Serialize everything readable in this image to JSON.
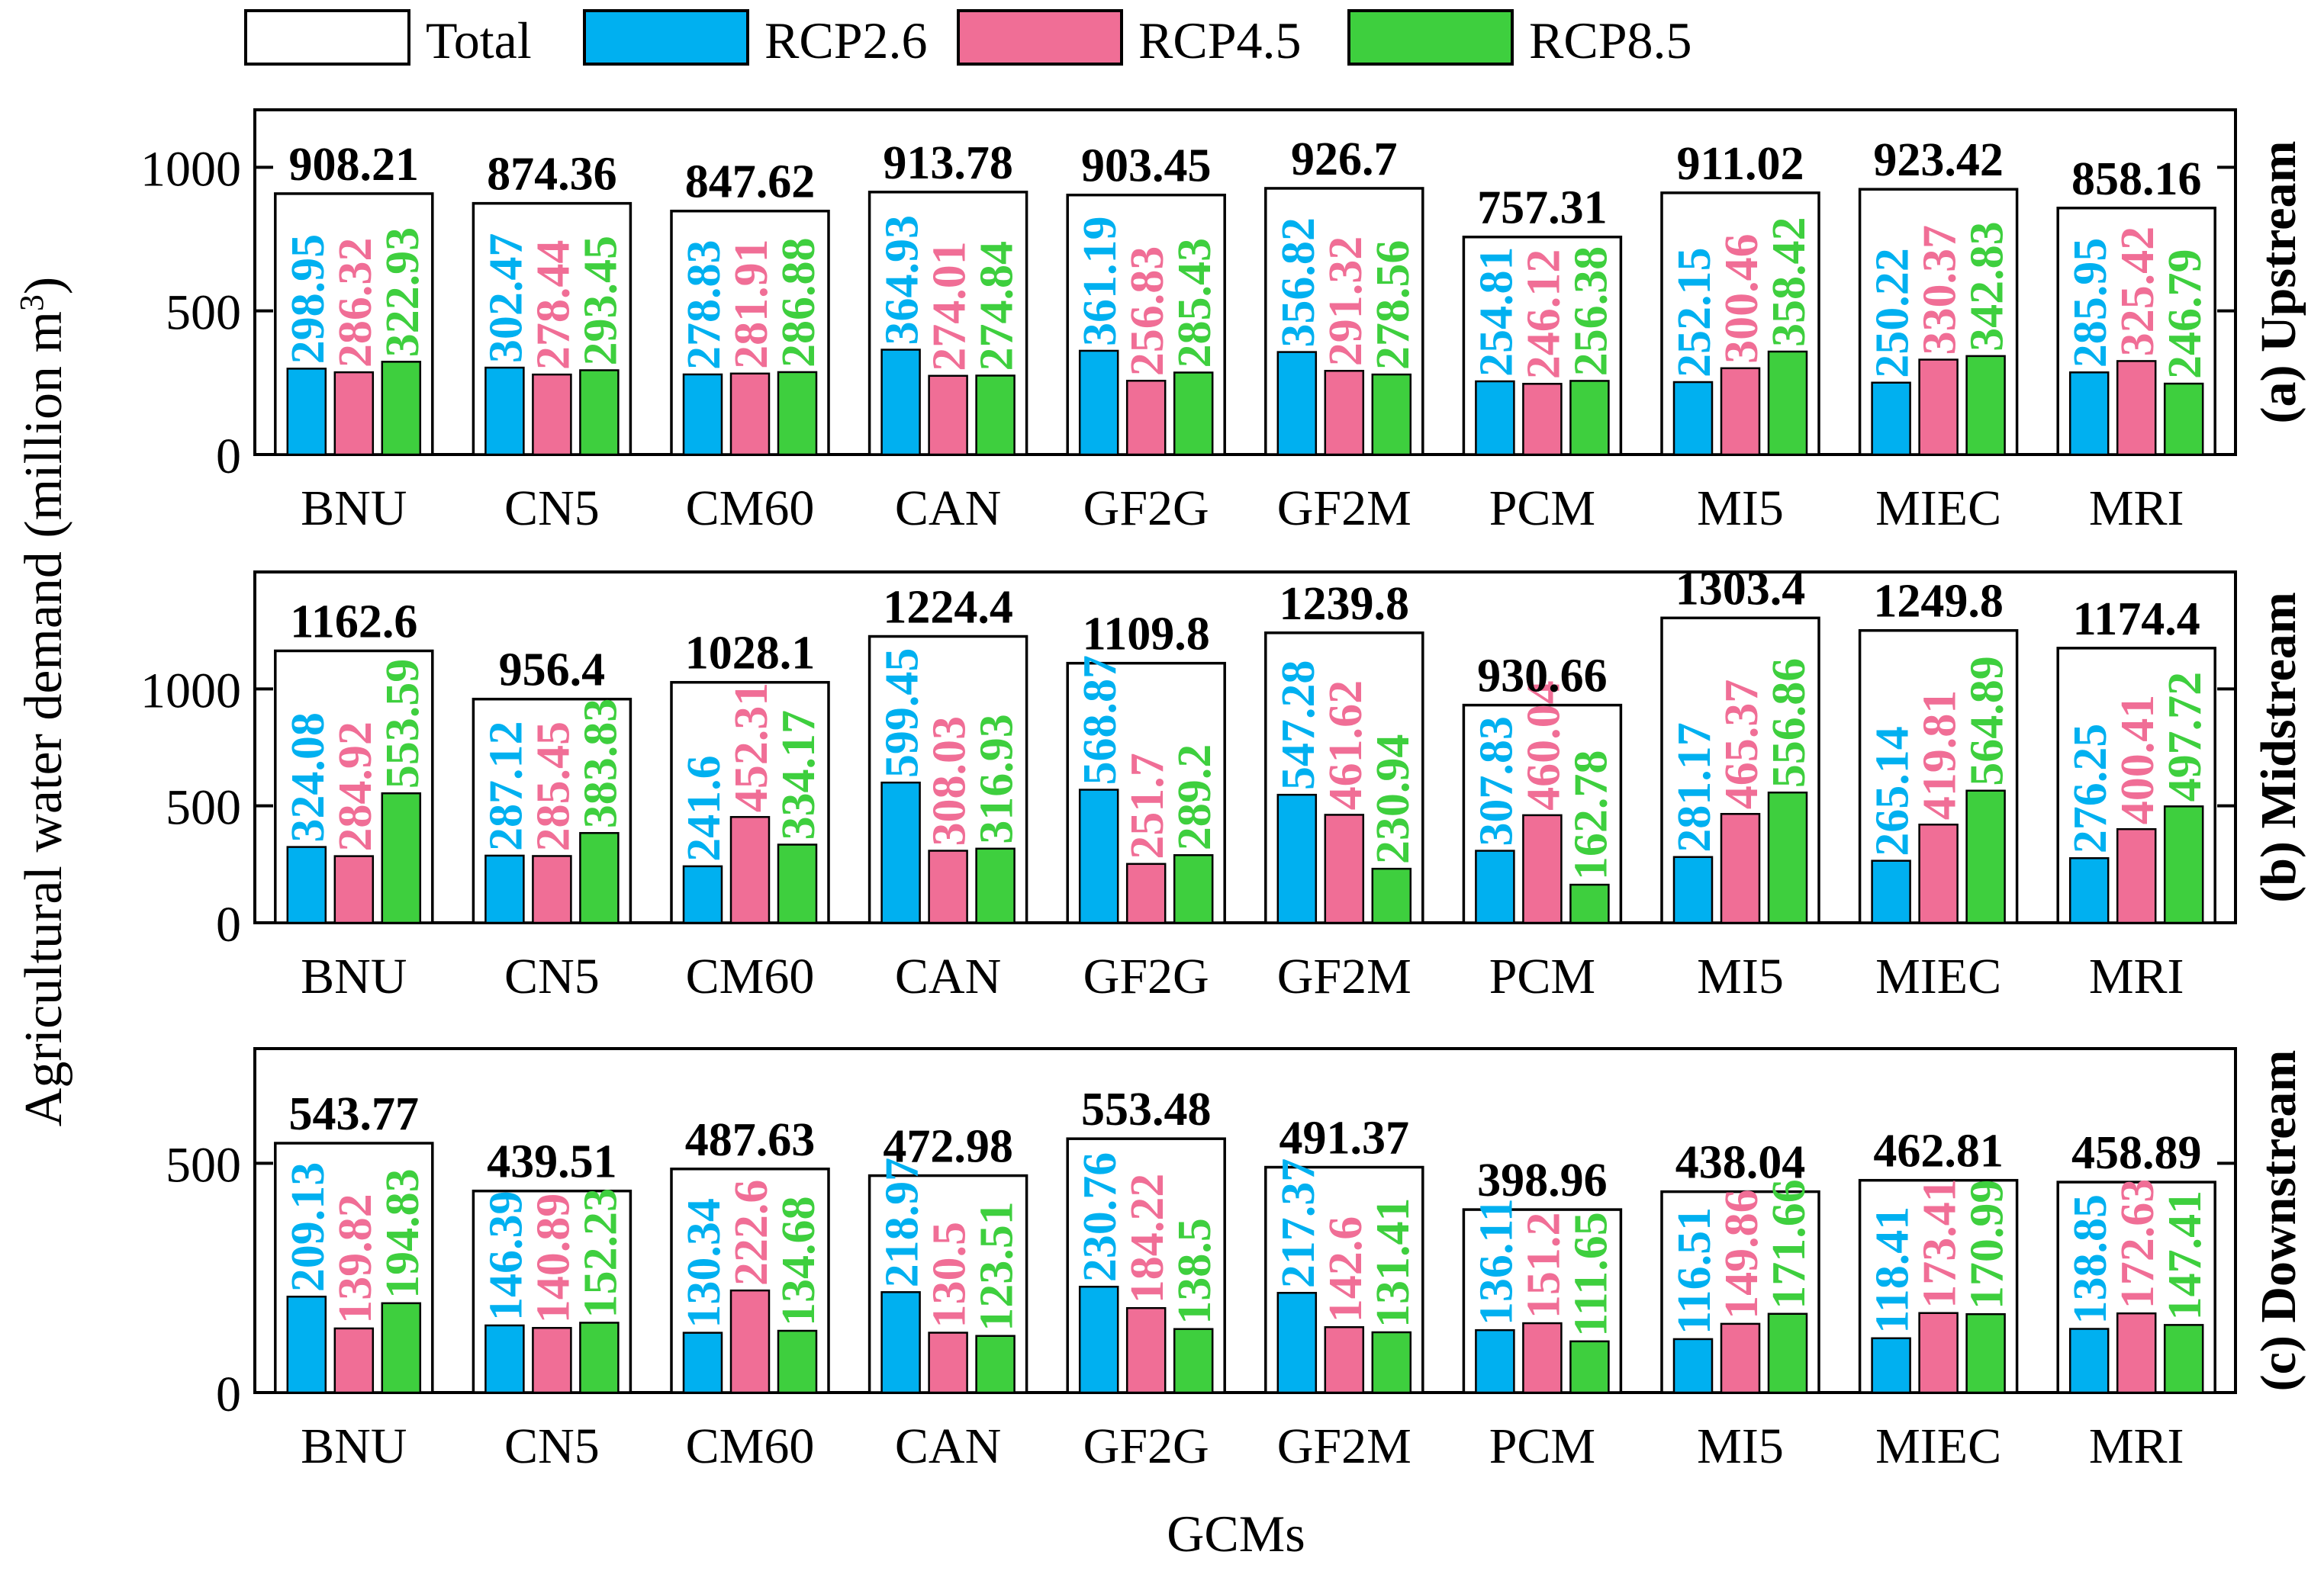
{
  "colors": {
    "total_fill": "#ffffff",
    "rcp26": "#00b0f0",
    "rcp45": "#f06e96",
    "rcp85": "#3ecf3e",
    "axis": "#000000"
  },
  "chart_data": [
    {
      "type": "bar",
      "panel_label": "(a) Upstream",
      "xlabel": "GCMs",
      "ylabel": "Agricultural water demand (million m",
      "ylabel_sup": "3",
      "ylabel_close": ")",
      "legend": {
        "entries": [
          "Total",
          "RCP2.6",
          "RCP4.5",
          "RCP8.5"
        ],
        "placement": "top-center"
      },
      "categories": [
        "BNU",
        "CN5",
        "CM60",
        "CAN",
        "GF2G",
        "GF2M",
        "PCM",
        "MI5",
        "MIEC",
        "MRI"
      ],
      "ylim": [
        0,
        1200
      ],
      "yticks": [
        0,
        500,
        1000
      ],
      "total": {
        "values": [
          908.21,
          874.36,
          847.62,
          913.78,
          903.45,
          926.7,
          757.31,
          911.02,
          923.42,
          858.16
        ],
        "labels": [
          "908.21",
          "874.36",
          "847.62",
          "913.78",
          "903.45",
          "926.7",
          "757.31",
          "911.02",
          "923.42",
          "858.16"
        ]
      },
      "series": [
        {
          "name": "RCP2.6",
          "values": [
            298.95,
            302.47,
            278.83,
            364.93,
            361.19,
            356.82,
            254.81,
            252.15,
            250.22,
            285.95
          ],
          "labels": [
            "298.95",
            "302.47",
            "278.83",
            "364.93",
            "361.19",
            "356.82",
            "254.81",
            "252.15",
            "250.22",
            "285.95"
          ]
        },
        {
          "name": "RCP4.5",
          "values": [
            286.32,
            278.44,
            281.91,
            274.01,
            256.83,
            291.32,
            246.12,
            300.46,
            330.37,
            325.42
          ],
          "labels": [
            "286.32",
            "278.44",
            "281.91",
            "274.01",
            "256.83",
            "291.32",
            "246.12",
            "300.46",
            "330.37",
            "325.42"
          ]
        },
        {
          "name": "RCP8.5",
          "values": [
            322.93,
            293.45,
            286.88,
            274.84,
            285.43,
            278.56,
            256.38,
            358.42,
            342.83,
            246.79
          ],
          "labels": [
            "322.93",
            "293.45",
            "286.88",
            "274.84",
            "285.43",
            "278.56",
            "256.38",
            "358.42",
            "342.83",
            "246.79"
          ]
        }
      ]
    },
    {
      "type": "bar",
      "panel_label": "(b) Midstream",
      "categories": [
        "BNU",
        "CN5",
        "CM60",
        "CAN",
        "GF2G",
        "GF2M",
        "PCM",
        "MI5",
        "MIEC",
        "MRI"
      ],
      "ylim": [
        0,
        1500
      ],
      "yticks": [
        0,
        500,
        1000
      ],
      "total": {
        "values": [
          1162.6,
          956.4,
          1028.1,
          1224.4,
          1109.8,
          1239.8,
          930.66,
          1303.4,
          1249.8,
          1174.4
        ],
        "labels": [
          "1162.6",
          "956.4",
          "1028.1",
          "1224.4",
          "1109.8",
          "1239.8",
          "930.66",
          "1303.4",
          "1249.8",
          "1174.4"
        ]
      },
      "series": [
        {
          "name": "RCP2.6",
          "values": [
            324.08,
            287.12,
            241.6,
            599.45,
            568.87,
            547.28,
            307.83,
            281.17,
            265.14,
            276.25
          ],
          "labels": [
            "324.08",
            "287.12",
            "241.6",
            "599.45",
            "568.87",
            "547.28",
            "307.83",
            "281.17",
            "265.14",
            "276.25"
          ]
        },
        {
          "name": "RCP4.5",
          "values": [
            284.92,
            285.45,
            452.31,
            308.03,
            251.7,
            461.62,
            460.04,
            465.37,
            419.81,
            400.41
          ],
          "labels": [
            "284.92",
            "285.45",
            "452.31",
            "308.03",
            "251.7",
            "461.62",
            "460.04",
            "465.37",
            "419.81",
            "400.41"
          ]
        },
        {
          "name": "RCP8.5",
          "values": [
            553.59,
            383.83,
            334.17,
            316.93,
            289.2,
            230.94,
            162.78,
            556.86,
            564.89,
            497.72
          ],
          "labels": [
            "553.59",
            "383.83",
            "334.17",
            "316.93",
            "289.2",
            "230.94",
            "162.78",
            "556.86",
            "564.89",
            "497.72"
          ]
        }
      ]
    },
    {
      "type": "bar",
      "panel_label": "(c) Downstream",
      "categories": [
        "BNU",
        "CN5",
        "CM60",
        "CAN",
        "GF2G",
        "GF2M",
        "PCM",
        "MI5",
        "MIEC",
        "MRI"
      ],
      "ylim": [
        0,
        750
      ],
      "yticks": [
        0,
        500
      ],
      "total": {
        "values": [
          543.77,
          439.51,
          487.63,
          472.98,
          553.48,
          491.37,
          398.96,
          438.04,
          462.81,
          458.89
        ],
        "labels": [
          "543.77",
          "439.51",
          "487.63",
          "472.98",
          "553.48",
          "491.37",
          "398.96",
          "438.04",
          "462.81",
          "458.89"
        ]
      },
      "series": [
        {
          "name": "RCP2.6",
          "values": [
            209.13,
            146.39,
            130.34,
            218.97,
            230.76,
            217.37,
            136.11,
            116.51,
            118.41,
            138.85
          ],
          "labels": [
            "209.13",
            "146.39",
            "130.34",
            "218.97",
            "230.76",
            "217.37",
            "136.11",
            "116.51",
            "118.41",
            "138.85"
          ]
        },
        {
          "name": "RCP4.5",
          "values": [
            139.82,
            140.89,
            222.6,
            130.5,
            184.22,
            142.6,
            151.2,
            149.86,
            173.41,
            172.63
          ],
          "labels": [
            "139.82",
            "140.89",
            "222.6",
            "130.5",
            "184.22",
            "142.6",
            "151.2",
            "149.86",
            "173.41",
            "172.63"
          ]
        },
        {
          "name": "RCP8.5",
          "values": [
            194.83,
            152.23,
            134.68,
            123.51,
            138.5,
            131.41,
            111.65,
            171.66,
            170.99,
            147.41
          ],
          "labels": [
            "194.83",
            "152.23",
            "134.68",
            "123.51",
            "138.5",
            "131.41",
            "111.65",
            "171.66",
            "170.99",
            "147.41"
          ]
        }
      ]
    }
  ]
}
